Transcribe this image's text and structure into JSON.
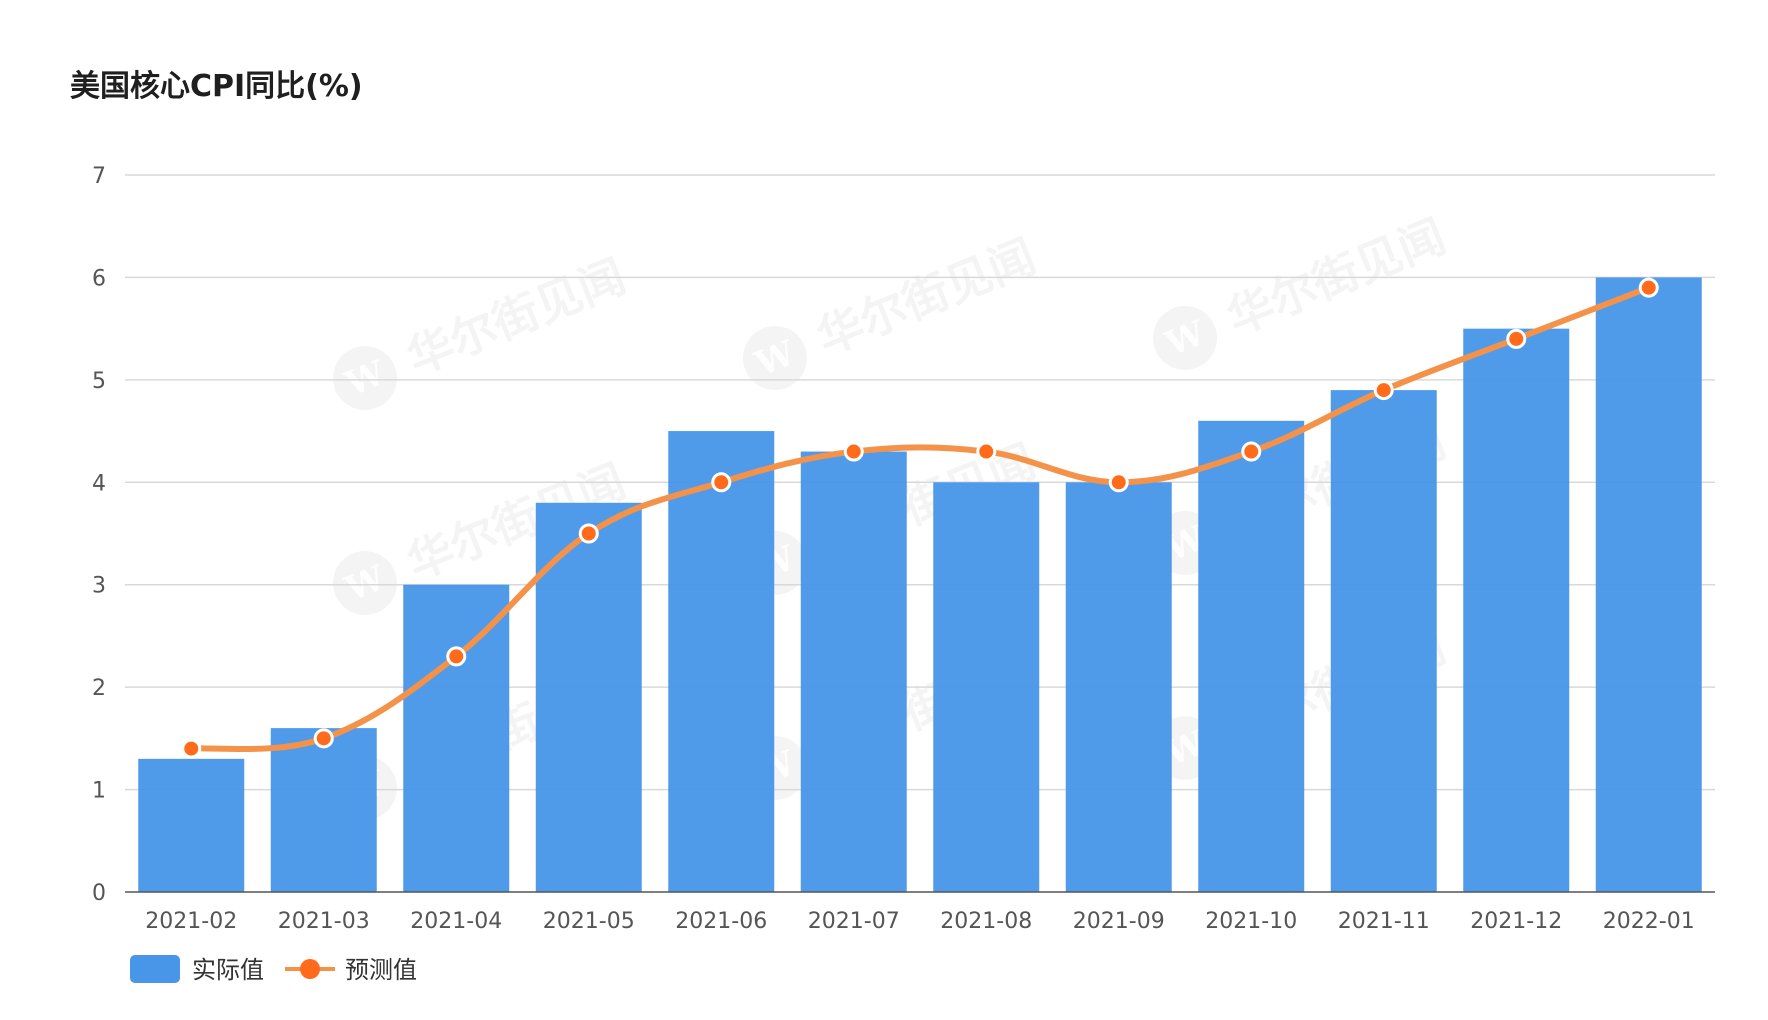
{
  "chart_data": {
    "type": "bar",
    "title": "美国核心CPI同比(%)",
    "categories": [
      "2021-02",
      "2021-03",
      "2021-04",
      "2021-05",
      "2021-06",
      "2021-07",
      "2021-08",
      "2021-09",
      "2021-10",
      "2021-11",
      "2021-12",
      "2022-01"
    ],
    "series": [
      {
        "name": "实际值",
        "type": "bar",
        "color": "#4796e8",
        "values": [
          1.3,
          1.6,
          3.0,
          3.8,
          4.5,
          4.3,
          4.0,
          4.0,
          4.6,
          4.9,
          5.5,
          6.0
        ]
      },
      {
        "name": "预测值",
        "type": "line",
        "color": "#f5924a",
        "marker_color": "#ff6b1a",
        "values": [
          1.4,
          1.5,
          2.3,
          3.5,
          4.0,
          4.3,
          4.3,
          4.0,
          4.3,
          4.9,
          5.4,
          5.9
        ]
      }
    ],
    "ylim": [
      0,
      7
    ],
    "yticks": [
      0,
      1,
      2,
      3,
      4,
      5,
      6,
      7
    ],
    "grid": true,
    "legend_position": "bottom-left"
  },
  "watermark": {
    "text": "华尔街见闻",
    "logo_letter": "W"
  }
}
